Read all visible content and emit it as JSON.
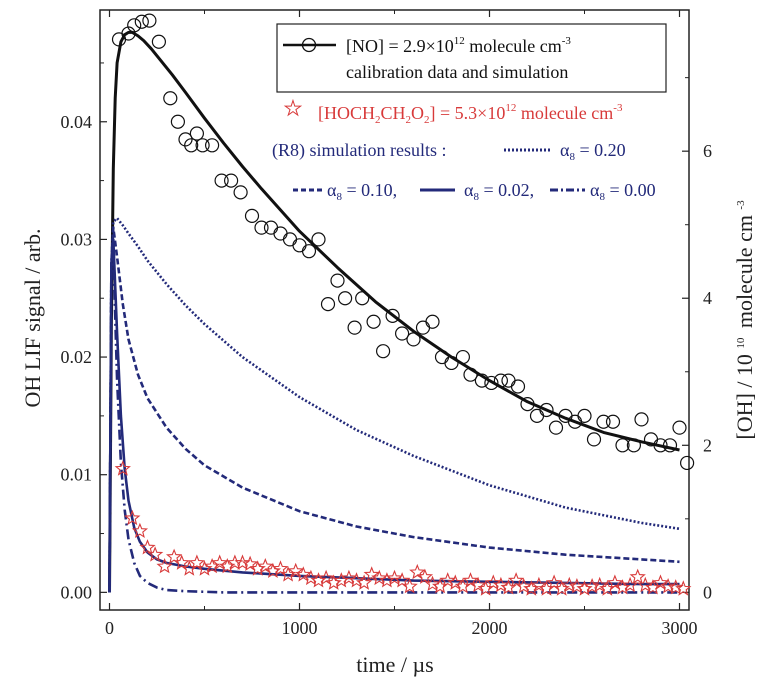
{
  "chart_data": {
    "type": "scatter",
    "xlabel": "time / µs",
    "ylabel_left": "OH LIF signal / arb.",
    "ylabel_right": "[OH] / 10",
    "ylabel_right_sup": "10",
    "ylabel_right_tail": "molecule cm",
    "ylabel_right_tail_sup": "-3",
    "xlim": [
      -50,
      3050
    ],
    "ylim_left": [
      -0.0015,
      0.0495
    ],
    "ylim_right": [
      -0.24,
      7.92
    ],
    "x_ticks": [
      0,
      1000,
      2000,
      3000
    ],
    "x_tick_labels": [
      "0",
      "1000",
      "2000",
      "3000"
    ],
    "y_left_ticks": [
      0.0,
      0.01,
      0.02,
      0.03,
      0.04
    ],
    "y_left_tick_labels": [
      "0.00",
      "0.01",
      "0.02",
      "0.03",
      "0.04"
    ],
    "y_right_ticks": [
      0,
      2,
      4,
      6
    ],
    "y_right_tick_labels": [
      "0",
      "2",
      "4",
      "6"
    ],
    "legend_position": "top-right",
    "legend": {
      "no_main": "[NO] = 2.9×10",
      "no_sup": "12",
      "no_tail": " molecule cm",
      "no_tail_sup": "-3",
      "no_line2": "calibration data and simulation",
      "hoch_main": "[HOCH",
      "hoch_sub1": "2",
      "hoch_mid": "CH",
      "hoch_sub2": "2",
      "hoch_o": "O",
      "hoch_sub3": "2",
      "hoch_tail": "] = 5.3×10",
      "hoch_sup": "12",
      "hoch_unit": " molecule cm",
      "hoch_unit_sup": "-3",
      "r8_label": "(R8) simulation results :",
      "alpha_symbol": "α",
      "alpha_sub": "8",
      "alpha_020": " = 0.20",
      "alpha_010": " = 0.10,",
      "alpha_002": " = 0.02,",
      "alpha_000": " = 0.00"
    },
    "colors": {
      "calibration": "#111111",
      "hoch": "#d83a3a",
      "simulation": "#232a7a",
      "legend_red_text": "#d83a3a",
      "legend_blue_text": "#232a7a"
    },
    "series": [
      {
        "name": "[NO] = 2.9×10^12 molecule cm^-3 calibration data",
        "kind": "scatter",
        "marker": "circle",
        "x": [
          50,
          100,
          130,
          170,
          210,
          260,
          320,
          360,
          400,
          430,
          460,
          490,
          540,
          590,
          640,
          690,
          750,
          800,
          850,
          900,
          950,
          1000,
          1050,
          1100,
          1150,
          1200,
          1240,
          1290,
          1330,
          1390,
          1440,
          1490,
          1540,
          1600,
          1650,
          1700,
          1750,
          1800,
          1860,
          1900,
          1960,
          2010,
          2060,
          2100,
          2150,
          2200,
          2250,
          2300,
          2350,
          2400,
          2450,
          2500,
          2550,
          2600,
          2650,
          2700,
          2760,
          2800,
          2850,
          2900,
          2950,
          3000,
          3040
        ],
        "y": [
          0.047,
          0.0475,
          0.0482,
          0.0485,
          0.0486,
          0.0468,
          0.042,
          0.04,
          0.0385,
          0.038,
          0.039,
          0.038,
          0.038,
          0.035,
          0.035,
          0.034,
          0.032,
          0.031,
          0.031,
          0.0305,
          0.03,
          0.0295,
          0.029,
          0.03,
          0.0245,
          0.0265,
          0.025,
          0.0225,
          0.025,
          0.023,
          0.0205,
          0.0235,
          0.022,
          0.0215,
          0.0225,
          0.023,
          0.02,
          0.0195,
          0.02,
          0.0185,
          0.018,
          0.0178,
          0.018,
          0.018,
          0.0175,
          0.016,
          0.015,
          0.0155,
          0.014,
          0.015,
          0.0145,
          0.015,
          0.013,
          0.0145,
          0.0145,
          0.0125,
          0.0125,
          0.0147,
          0.013,
          0.0125,
          0.0125,
          0.014,
          0.011
        ]
      },
      {
        "name": "calibration simulation",
        "kind": "line",
        "style": "solid",
        "color_key": "calibration",
        "x": [
          0,
          5,
          10,
          20,
          30,
          40,
          60,
          80,
          100,
          120,
          150,
          180,
          220,
          270,
          330,
          400,
          500,
          600,
          700,
          800,
          900,
          1000,
          1200,
          1400,
          1600,
          1800,
          2000,
          2200,
          2400,
          2600,
          2800,
          3000
        ],
        "y": [
          0.0,
          0.012,
          0.023,
          0.036,
          0.042,
          0.045,
          0.0468,
          0.0474,
          0.0476,
          0.0476,
          0.0473,
          0.0469,
          0.0462,
          0.0452,
          0.044,
          0.0425,
          0.0403,
          0.0382,
          0.0362,
          0.0343,
          0.0325,
          0.0307,
          0.0276,
          0.0247,
          0.0222,
          0.02,
          0.018,
          0.0162,
          0.0148,
          0.0136,
          0.0128,
          0.0121
        ]
      },
      {
        "name": "[HOCH2CH2O2] = 5.3×10^12 molecule cm^-3 data",
        "kind": "scatter",
        "marker": "star",
        "x": [
          70,
          120,
          160,
          200,
          240,
          290,
          340,
          380,
          420,
          460,
          500,
          540,
          580,
          620,
          660,
          700,
          740,
          780,
          820,
          860,
          900,
          940,
          980,
          1020,
          1060,
          1100,
          1140,
          1180,
          1220,
          1260,
          1300,
          1340,
          1380,
          1420,
          1460,
          1500,
          1540,
          1580,
          1620,
          1660,
          1700,
          1740,
          1780,
          1820,
          1860,
          1900,
          1940,
          1980,
          2020,
          2060,
          2100,
          2140,
          2180,
          2220,
          2260,
          2300,
          2340,
          2380,
          2420,
          2460,
          2500,
          2540,
          2580,
          2620,
          2660,
          2700,
          2740,
          2780,
          2820,
          2860,
          2900,
          2940,
          2980,
          3020
        ],
        "y": [
          0.0105,
          0.0063,
          0.0052,
          0.0038,
          0.0032,
          0.0022,
          0.003,
          0.0025,
          0.002,
          0.0025,
          0.002,
          0.0022,
          0.0025,
          0.0022,
          0.0025,
          0.0025,
          0.0024,
          0.002,
          0.0022,
          0.0018,
          0.002,
          0.0015,
          0.0018,
          0.0015,
          0.0012,
          0.001,
          0.0012,
          0.0008,
          0.001,
          0.0012,
          0.001,
          0.0008,
          0.0015,
          0.0012,
          0.001,
          0.0012,
          0.001,
          0.0005,
          0.0017,
          0.0013,
          0.0007,
          0.0005,
          0.001,
          0.0008,
          0.0005,
          0.001,
          0.0006,
          0.0003,
          0.0008,
          0.0006,
          0.0004,
          0.001,
          0.0005,
          0.0003,
          0.0006,
          0.0003,
          0.0008,
          0.0003,
          0.0006,
          0.0005,
          0.0003,
          0.0005,
          0.0006,
          0.0003,
          0.0008,
          0.0004,
          0.0006,
          0.0013,
          0.0006,
          0.0004,
          0.0008,
          0.0005,
          0.0004,
          0.0003
        ]
      },
      {
        "name": "α8 = 0.20",
        "kind": "line",
        "style": "dotted",
        "color_key": "simulation",
        "x": [
          0,
          5,
          10,
          20,
          40,
          70,
          100,
          150,
          200,
          300,
          400,
          500,
          700,
          1000,
          1300,
          1600,
          2000,
          2400,
          2800,
          3000
        ],
        "y": [
          0.0,
          0.015,
          0.028,
          0.0315,
          0.0318,
          0.0312,
          0.0305,
          0.0294,
          0.0282,
          0.0262,
          0.0244,
          0.0228,
          0.02,
          0.0166,
          0.0138,
          0.0116,
          0.0091,
          0.0072,
          0.0059,
          0.0054
        ]
      },
      {
        "name": "α8 = 0.10",
        "kind": "line",
        "style": "dashed",
        "color_key": "simulation",
        "x": [
          0,
          5,
          10,
          20,
          40,
          70,
          100,
          150,
          200,
          300,
          400,
          500,
          700,
          1000,
          1300,
          1600,
          2000,
          2400,
          2800,
          3000
        ],
        "y": [
          0.0,
          0.015,
          0.028,
          0.031,
          0.0285,
          0.0245,
          0.0215,
          0.0185,
          0.0165,
          0.014,
          0.0122,
          0.0108,
          0.0089,
          0.0069,
          0.0056,
          0.0047,
          0.0038,
          0.0032,
          0.0028,
          0.0026
        ]
      },
      {
        "name": "α8 = 0.02",
        "kind": "line",
        "style": "solid",
        "color_key": "simulation",
        "x": [
          0,
          5,
          10,
          20,
          40,
          60,
          80,
          100,
          130,
          160,
          200,
          250,
          300,
          400,
          500,
          700,
          1000,
          1300,
          1600,
          2000,
          2400,
          2800,
          3000
        ],
        "y": [
          0.0,
          0.015,
          0.028,
          0.03,
          0.022,
          0.015,
          0.0105,
          0.0078,
          0.0055,
          0.0043,
          0.0034,
          0.0028,
          0.0025,
          0.0022,
          0.002,
          0.0017,
          0.0014,
          0.0012,
          0.001,
          0.0009,
          0.0008,
          0.0007,
          0.0007
        ]
      },
      {
        "name": "α8 = 0.00",
        "kind": "line",
        "style": "dashdot",
        "color_key": "simulation",
        "x": [
          0,
          5,
          10,
          20,
          40,
          60,
          80,
          100,
          130,
          160,
          200,
          250,
          300,
          400,
          600,
          1000,
          2000,
          3000
        ],
        "y": [
          0.0,
          0.015,
          0.028,
          0.029,
          0.018,
          0.011,
          0.007,
          0.0045,
          0.0025,
          0.0014,
          0.0008,
          0.0004,
          0.0002,
          0.0001,
          0.0,
          0.0,
          0.0,
          0.0
        ]
      }
    ]
  }
}
